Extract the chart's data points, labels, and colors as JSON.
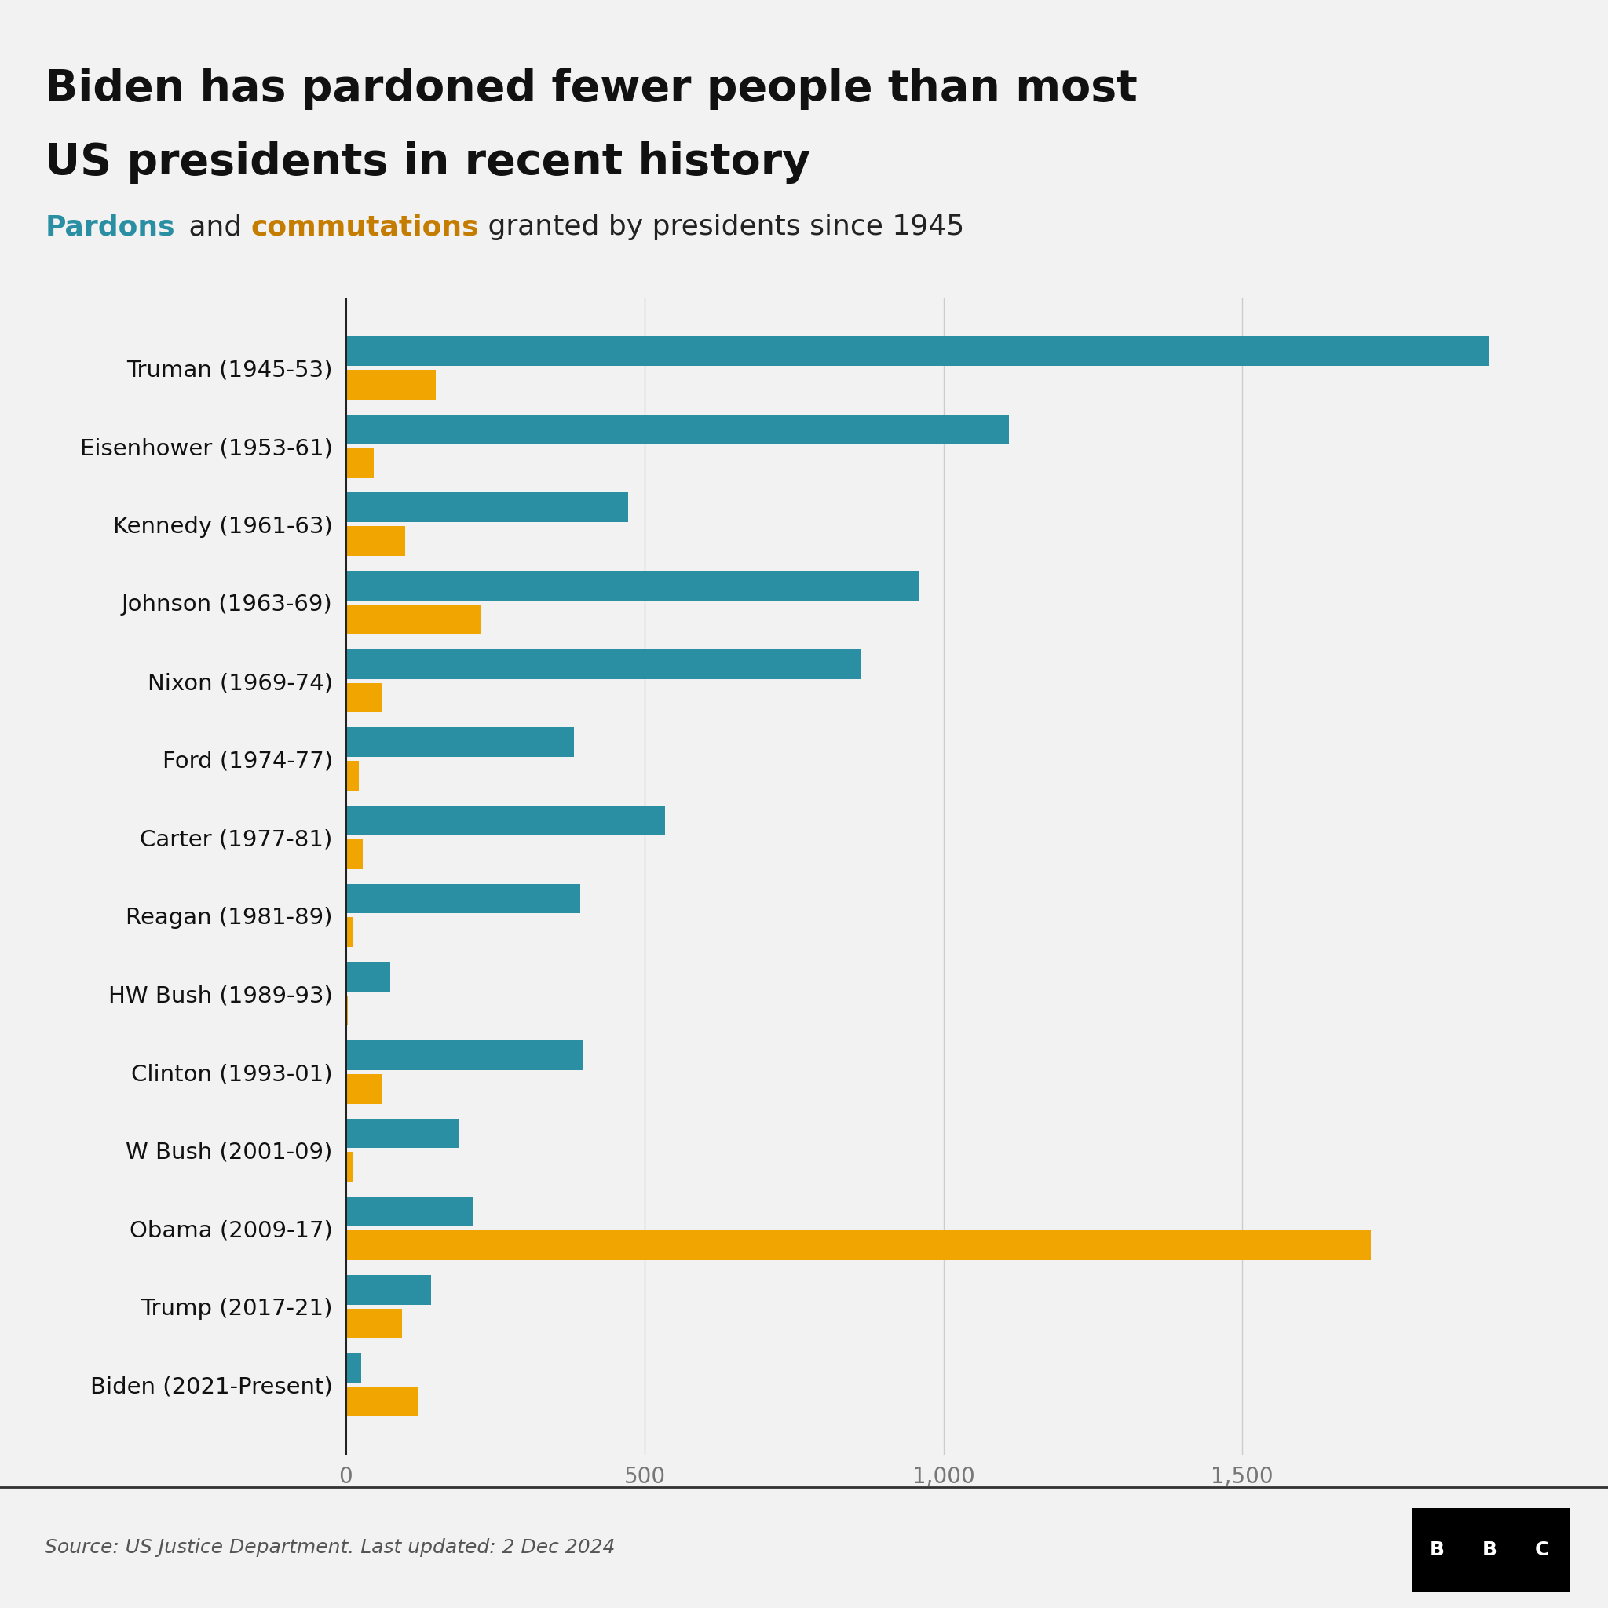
{
  "title_line1": "Biden has pardoned fewer people than most",
  "title_line2": "US presidents in recent history",
  "subtitle_pardons": "Pardons",
  "subtitle_and": " and ",
  "subtitle_commutations": "commutations",
  "subtitle_rest": " granted by presidents since 1945",
  "source": "Source: US Justice Department. Last updated: 2 Dec 2024",
  "presidents": [
    "Truman (1945-53)",
    "Eisenhower (1953-61)",
    "Kennedy (1961-63)",
    "Johnson (1963-69)",
    "Nixon (1969-74)",
    "Ford (1974-77)",
    "Carter (1977-81)",
    "Reagan (1981-89)",
    "HW Bush (1989-93)",
    "Clinton (1993-01)",
    "W Bush (2001-09)",
    "Obama (2009-17)",
    "Trump (2017-21)",
    "Biden (2021-Present)"
  ],
  "pardons": [
    1913,
    1110,
    472,
    960,
    863,
    382,
    534,
    393,
    74,
    396,
    189,
    212,
    143,
    26
  ],
  "commutations": [
    150,
    47,
    100,
    226,
    60,
    22,
    29,
    13,
    3,
    61,
    11,
    1715,
    94,
    122
  ],
  "pardon_color": "#2b8fa3",
  "commutation_color": "#f0a500",
  "background_color": "#f2f2f2",
  "title_color": "#111111",
  "subtitle_pardon_color": "#2b8fa3",
  "subtitle_commutation_color": "#c47d00",
  "subtitle_text_color": "#222222",
  "axis_line_color": "#222222",
  "grid_color": "#cccccc",
  "source_color": "#555555",
  "xlim": [
    0,
    2050
  ],
  "xticks": [
    0,
    500,
    1000,
    1500
  ],
  "xtick_labels": [
    "0",
    "500",
    "1,000",
    "1,500"
  ],
  "bar_height": 0.38,
  "bar_gap": 0.05
}
